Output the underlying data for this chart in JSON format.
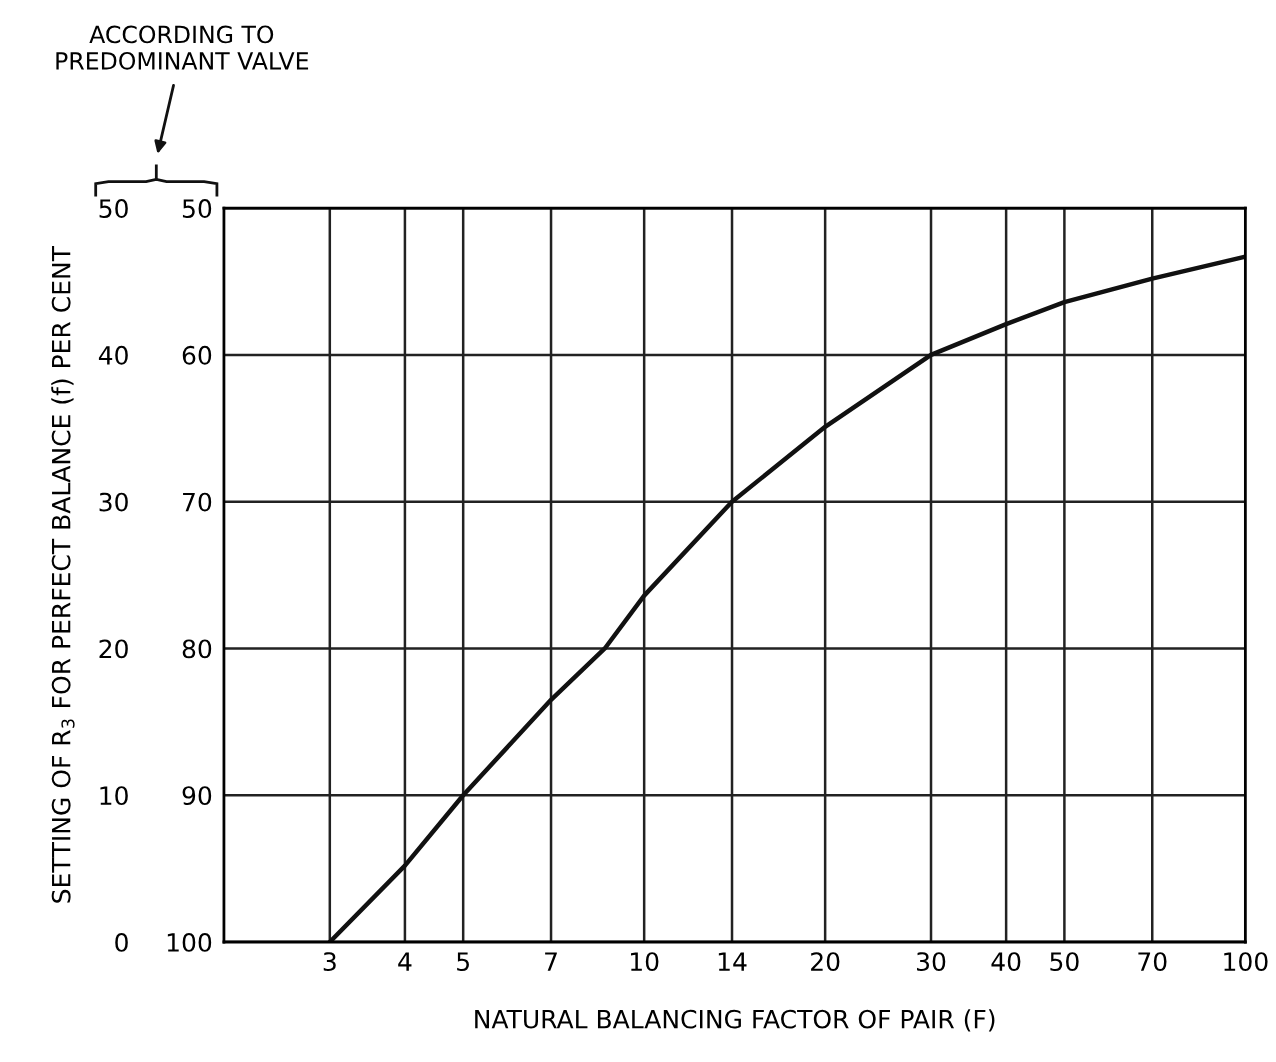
{
  "chart_data": {
    "type": "line",
    "xlabel": "NATURAL BALANCING FACTOR OF PAIR (F)",
    "ylabel": "SETTING OF R$_{3}$ FOR PERFECT BALANCE (f) PER CENT",
    "annotations": [
      "ACCORDING TO\nPREDOMINANT VALVE"
    ],
    "log": "x",
    "xlim": [
      2,
      100
    ],
    "xticks": [
      3,
      4,
      5,
      7,
      10,
      14,
      20,
      30,
      40,
      50,
      70,
      100
    ],
    "ylim": [
      0,
      50
    ],
    "yticks": [
      0,
      10,
      20,
      30,
      40,
      50
    ],
    "y2lim": [
      100,
      50
    ],
    "y2ticks": [
      100,
      90,
      80,
      70,
      60,
      50
    ],
    "grid": true,
    "marker": "none",
    "line_style": "solid",
    "series": [
      {
        "color": "#111111",
        "x": [
          3,
          4,
          5,
          7,
          8.6,
          10,
          14,
          20,
          30,
          40,
          50,
          70,
          100
        ],
        "values": [
          0,
          5.2,
          10,
          16.5,
          20,
          23.6,
          30,
          35.1,
          40,
          42.1,
          43.6,
          45.2,
          46.7
        ]
      }
    ]
  }
}
